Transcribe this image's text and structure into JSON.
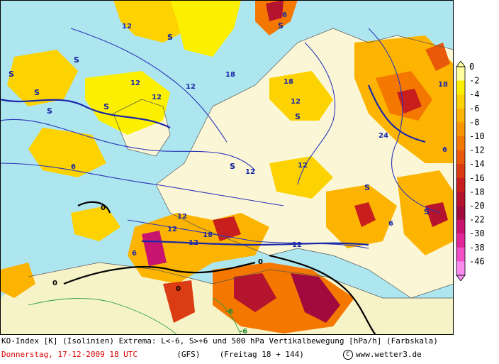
{
  "map": {
    "region": "Europe",
    "isoline_labels": [
      "12",
      "12",
      "12",
      "12",
      "12",
      "12",
      "12",
      "12",
      "12",
      "12",
      "12",
      "18",
      "18",
      "18",
      "18",
      "24",
      "6",
      "6",
      "6",
      "6",
      "6",
      "0",
      "0",
      "0",
      "0",
      "-6",
      "-6"
    ],
    "stable_marker": "S"
  },
  "legend": {
    "labels": [
      "0",
      "-2",
      "-4",
      "-6",
      "-8",
      "-10",
      "-12",
      "-14",
      "-16",
      "-18",
      "-20",
      "-22",
      "-30",
      "-38",
      "-46"
    ],
    "colors": [
      "#ffff9c",
      "#fcf000",
      "#fcd200",
      "#fcb400",
      "#fc9600",
      "#f47800",
      "#e85a0a",
      "#dc3c14",
      "#c81e1e",
      "#b4142d",
      "#a00a3c",
      "#c8146e",
      "#e0289a",
      "#f050c8",
      "#fa8cf0"
    ]
  },
  "footer": {
    "line1": "KO-Index [K] (Isolinien) Extrema: L<-6, S>+6 und 500 hPa Vertikalbewegung [hPa/h] (Farbskala)",
    "date": "Donnerstag, 17-12-2009  18 UTC",
    "model": "(GFS)",
    "forecast": "(Freitag 18 + 144)",
    "copyright_symbol": "C",
    "website": "www.wetter3.de"
  }
}
